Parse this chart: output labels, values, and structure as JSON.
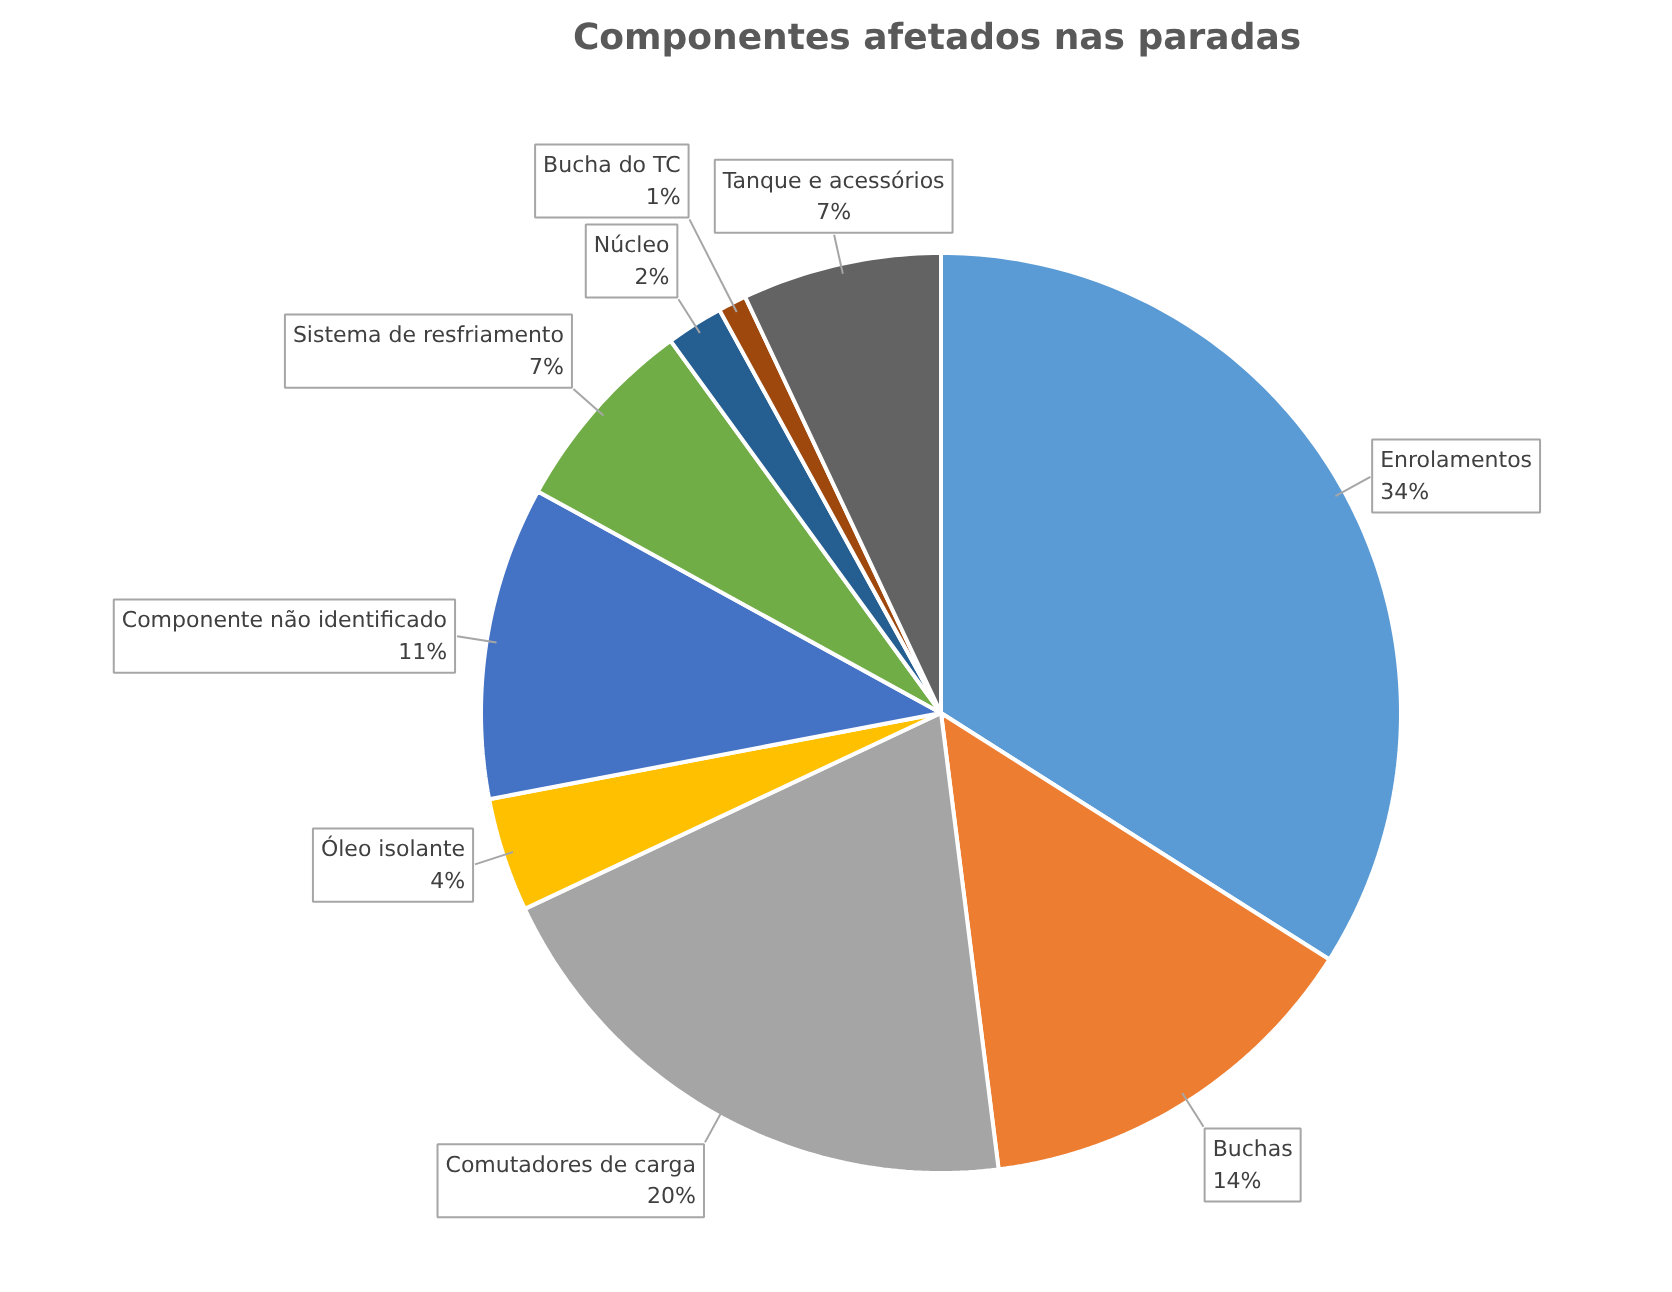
{
  "chart_data": {
    "type": "pie",
    "title": "Componentes afetados nas paradas",
    "categories": [
      "Enrolamentos",
      "Buchas",
      "Comutadores de carga",
      "Óleo isolante",
      "Componente não identificado",
      "Sistema de resfriamento",
      "Núcleo",
      "Bucha do TC",
      "Tanque e acessórios"
    ],
    "values": [
      34,
      14,
      20,
      4,
      11,
      7,
      2,
      1,
      7
    ],
    "value_labels": [
      "34%",
      "14%",
      "20%",
      "4%",
      "11%",
      "7%",
      "2%",
      "1%",
      "7%"
    ],
    "colors": [
      "#5b9bd5",
      "#ed7d31",
      "#a5a5a5",
      "#ffc000",
      "#4472c4",
      "#70ad47",
      "#255e91",
      "#9e480e",
      "#636363"
    ]
  }
}
